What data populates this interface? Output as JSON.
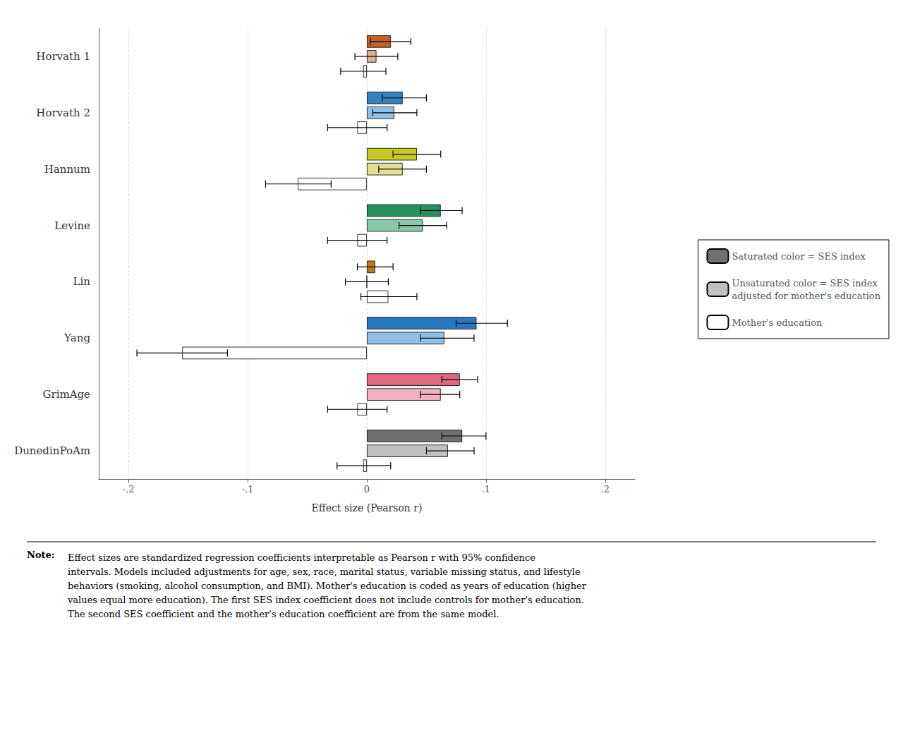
{
  "chart_data": {
    "type": "bar",
    "orientation": "horizontal",
    "xlabel": "Effect size (Pearson r)",
    "categories": [
      "Horvath 1",
      "Horvath 2",
      "Hannum",
      "Levine",
      "Lin",
      "Yang",
      "GrimAge",
      "DunedinPoAm"
    ],
    "series": [
      {
        "name": "Saturated color = SES index",
        "color": "#707070",
        "colors": [
          "#C0622A",
          "#3480C0",
          "#C8C820",
          "#259060",
          "#C07820",
          "#2878C0",
          "#E06880",
          "#707070"
        ],
        "values": [
          0.02,
          0.03,
          0.042,
          0.062,
          0.007,
          0.092,
          0.078,
          0.08
        ],
        "ci_lo": [
          0.003,
          0.013,
          0.022,
          0.045,
          -0.008,
          0.075,
          0.063,
          0.063
        ],
        "ci_hi": [
          0.037,
          0.05,
          0.062,
          0.08,
          0.022,
          0.118,
          0.093,
          0.1
        ]
      },
      {
        "name": "Unsaturated color = SES index\nadjusted for mother's education",
        "color": "#C0C0C0",
        "colors": [
          "#E0B090",
          "#90C0E8",
          "#E0E090",
          "#88C8A8",
          "#E0C090",
          "#90C0E8",
          "#F0B0C0",
          "#C0C0C0"
        ],
        "values": [
          0.008,
          0.023,
          0.03,
          0.047,
          0.0,
          0.065,
          0.062,
          0.068
        ],
        "ci_lo": [
          -0.01,
          0.005,
          0.01,
          0.027,
          -0.018,
          0.045,
          0.045,
          0.05
        ],
        "ci_hi": [
          0.026,
          0.042,
          0.05,
          0.067,
          0.018,
          0.09,
          0.078,
          0.09
        ]
      },
      {
        "name": "Mother's education",
        "color": "white",
        "values": [
          -0.003,
          -0.008,
          -0.058,
          -0.008,
          0.018,
          -0.155,
          -0.008,
          -0.003
        ],
        "ci_lo": [
          -0.022,
          -0.033,
          -0.085,
          -0.033,
          -0.005,
          -0.193,
          -0.033,
          -0.025
        ],
        "ci_hi": [
          0.016,
          0.017,
          -0.03,
          0.017,
          0.042,
          -0.117,
          0.017,
          0.02
        ]
      }
    ],
    "xlim": [
      -0.225,
      0.225
    ],
    "xticks": [
      {
        "value": -0.2,
        "label": "-.2"
      },
      {
        "value": -0.1,
        "label": "-.1"
      },
      0,
      {
        "value": 0.1,
        "label": ".1"
      },
      {
        "value": 0.2,
        "label": ".2"
      }
    ],
    "grid": true,
    "legend": "right",
    "annotations": [
      "Note:",
      "Effect sizes are standardized regression coefficients interpretable as Pearson r with 95% confidence\nintervals. Models included adjustments for age, sex, race, marital status, variable missing status, and lifestyle\nbehaviors (smoking, alcohol consumption, and BMI). Mother's education is coded as years of education (higher\nvalues equal more education). The first SES index coefficient does not include controls for mother's education.\nThe second SES coefficient and the mother's education coefficient are from the same model."
    ]
  }
}
